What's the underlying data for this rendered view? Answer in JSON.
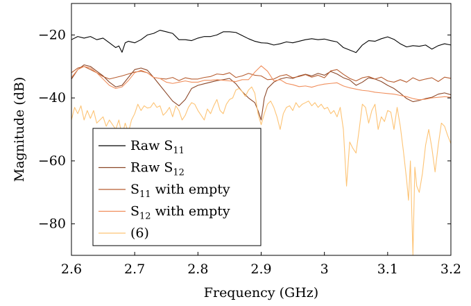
{
  "chart_data": {
    "type": "line",
    "xlabel": "Frequency (GHz)",
    "ylabel": "Magnitude (dB)",
    "xlim": [
      2.6,
      3.2
    ],
    "ylim": [
      -90,
      -10
    ],
    "xticks": [
      "2.6",
      "2.7",
      "2.8",
      "2.9",
      "3",
      "3.1",
      "3.2"
    ],
    "xtick_values": [
      2.6,
      2.7,
      2.8,
      2.9,
      3.0,
      3.1,
      3.2
    ],
    "yticks": [
      "−20",
      "−40",
      "−60",
      "−80"
    ],
    "ytick_values": [
      -20,
      -40,
      -60,
      -80
    ],
    "grid": false,
    "legend_position": "bottom-left",
    "series": [
      {
        "name": "Raw S11",
        "legend_main": "Raw S",
        "legend_sub": "11",
        "legend_suffix": "",
        "color": "#000000",
        "x": [
          2.6,
          2.61,
          2.62,
          2.63,
          2.64,
          2.65,
          2.66,
          2.67,
          2.675,
          2.68,
          2.685,
          2.69,
          2.7,
          2.71,
          2.72,
          2.73,
          2.74,
          2.75,
          2.76,
          2.77,
          2.78,
          2.79,
          2.8,
          2.81,
          2.82,
          2.83,
          2.84,
          2.85,
          2.86,
          2.87,
          2.88,
          2.89,
          2.9,
          2.91,
          2.92,
          2.93,
          2.94,
          2.95,
          2.96,
          2.97,
          2.98,
          2.99,
          3.0,
          3.01,
          3.02,
          3.03,
          3.04,
          3.05,
          3.06,
          3.07,
          3.08,
          3.09,
          3.1,
          3.11,
          3.12,
          3.13,
          3.14,
          3.15,
          3.16,
          3.17,
          3.18,
          3.19,
          3.2
        ],
        "y": [
          -21.5,
          -20.5,
          -21,
          -20.5,
          -21.5,
          -21,
          -22.5,
          -24,
          -23.5,
          -25.5,
          -22.5,
          -22,
          -22.5,
          -21.5,
          -20,
          -19.5,
          -18.5,
          -19,
          -19.5,
          -21.5,
          -21.5,
          -21.8,
          -21,
          -20.5,
          -20.5,
          -20,
          -19,
          -19,
          -19.2,
          -20.2,
          -21.2,
          -22,
          -22.5,
          -22.6,
          -23.2,
          -22.8,
          -22.2,
          -22.5,
          -22,
          -21.5,
          -21.2,
          -21.5,
          -21.3,
          -21.8,
          -22.2,
          -24,
          -24.8,
          -25.6,
          -23.2,
          -21.8,
          -22,
          -21.2,
          -20.6,
          -21.4,
          -22.8,
          -23.8,
          -23.4,
          -23.6,
          -23.2,
          -24.5,
          -23.4,
          -22.8,
          -23.2
        ]
      },
      {
        "name": "Raw S12",
        "legend_main": "Raw S",
        "legend_sub": "12",
        "legend_suffix": "",
        "color": "#8a4526",
        "x": [
          2.6,
          2.61,
          2.62,
          2.63,
          2.64,
          2.65,
          2.66,
          2.67,
          2.68,
          2.69,
          2.7,
          2.71,
          2.72,
          2.73,
          2.74,
          2.75,
          2.76,
          2.77,
          2.78,
          2.79,
          2.8,
          2.81,
          2.82,
          2.83,
          2.84,
          2.85,
          2.86,
          2.87,
          2.88,
          2.89,
          2.895,
          2.9,
          2.905,
          2.91,
          2.92,
          2.93,
          2.94,
          2.95,
          2.96,
          2.97,
          2.98,
          2.99,
          3.0,
          3.01,
          3.02,
          3.03,
          3.04,
          3.05,
          3.06,
          3.07,
          3.08,
          3.09,
          3.1,
          3.11,
          3.12,
          3.13,
          3.14,
          3.15,
          3.16,
          3.17,
          3.18,
          3.19,
          3.2
        ],
        "y": [
          -34,
          -31,
          -29.5,
          -30,
          -31.5,
          -33,
          -35,
          -36.5,
          -36,
          -33.5,
          -31,
          -30.5,
          -31.2,
          -33.5,
          -36,
          -38.5,
          -41,
          -42.5,
          -40.5,
          -37,
          -36,
          -35.5,
          -35,
          -34.5,
          -34.2,
          -33.8,
          -35.5,
          -38,
          -40,
          -41.5,
          -44,
          -47,
          -40,
          -37,
          -35,
          -34,
          -33.5,
          -33.8,
          -33,
          -32.5,
          -33,
          -32.2,
          -32.8,
          -31.6,
          -32.4,
          -33.6,
          -34.3,
          -36,
          -35,
          -33.6,
          -34,
          -34.8,
          -36,
          -37,
          -38.5,
          -40.2,
          -41.2,
          -40.8,
          -40.2,
          -39.8,
          -38.8,
          -38.4,
          -39
        ]
      },
      {
        "name": "S11 with empty",
        "legend_main": "S",
        "legend_sub": "11",
        "legend_suffix": " with empty",
        "color": "#b75d30",
        "x": [
          2.6,
          2.61,
          2.62,
          2.63,
          2.64,
          2.65,
          2.66,
          2.67,
          2.68,
          2.69,
          2.7,
          2.71,
          2.72,
          2.73,
          2.74,
          2.75,
          2.76,
          2.77,
          2.78,
          2.79,
          2.8,
          2.81,
          2.82,
          2.83,
          2.84,
          2.85,
          2.86,
          2.87,
          2.88,
          2.89,
          2.9,
          2.91,
          2.92,
          2.93,
          2.94,
          2.95,
          2.96,
          2.97,
          2.98,
          2.99,
          3.0,
          3.01,
          3.02,
          3.03,
          3.04,
          3.05,
          3.06,
          3.07,
          3.08,
          3.09,
          3.1,
          3.11,
          3.12,
          3.13,
          3.14,
          3.15,
          3.16,
          3.17,
          3.18,
          3.19,
          3.2
        ],
        "y": [
          -32,
          -30.5,
          -30,
          -31,
          -32,
          -33.2,
          -34,
          -33.5,
          -33,
          -32.4,
          -31.8,
          -31.5,
          -32,
          -33.5,
          -33.8,
          -34,
          -33.5,
          -34.5,
          -33.6,
          -34,
          -34,
          -33.5,
          -33.2,
          -32.4,
          -32.6,
          -32,
          -33.5,
          -33,
          -32.2,
          -32.8,
          -33,
          -34.2,
          -34,
          -33,
          -32.6,
          -33.6,
          -33.2,
          -32.6,
          -33.4,
          -32.8,
          -33.6,
          -31.4,
          -31,
          -32.5,
          -33.8,
          -34.6,
          -33.6,
          -33.2,
          -34,
          -33.4,
          -34.6,
          -35,
          -34.2,
          -35,
          -33.6,
          -34.5,
          -34,
          -33.6,
          -34.8,
          -33.4,
          -33.8
        ]
      },
      {
        "name": "S12 with empty",
        "legend_main": "S",
        "legend_sub": "12",
        "legend_suffix": " with empty",
        "color": "#f08d5a",
        "x": [
          2.6,
          2.61,
          2.62,
          2.63,
          2.64,
          2.65,
          2.66,
          2.67,
          2.68,
          2.69,
          2.7,
          2.71,
          2.72,
          2.73,
          2.74,
          2.75,
          2.76,
          2.77,
          2.78,
          2.79,
          2.8,
          2.81,
          2.82,
          2.83,
          2.84,
          2.85,
          2.86,
          2.87,
          2.88,
          2.89,
          2.9,
          2.91,
          2.92,
          2.93,
          2.94,
          2.95,
          2.96,
          2.97,
          2.98,
          2.99,
          3.0,
          3.01,
          3.02,
          3.03,
          3.04,
          3.05,
          3.06,
          3.07,
          3.08,
          3.09,
          3.1,
          3.11,
          3.12,
          3.13,
          3.14,
          3.15,
          3.16,
          3.17,
          3.18,
          3.19,
          3.2
        ],
        "y": [
          -33.5,
          -31,
          -30,
          -30.5,
          -32,
          -34,
          -36,
          -37,
          -36.5,
          -34.5,
          -32,
          -31.2,
          -32,
          -33.5,
          -33.8,
          -35,
          -35.4,
          -35,
          -34.6,
          -35,
          -35,
          -34.4,
          -34.4,
          -34.2,
          -34.4,
          -34.6,
          -34.8,
          -34.2,
          -34.2,
          -31.8,
          -29.8,
          -31.5,
          -34.6,
          -34.2,
          -35.4,
          -35.8,
          -36.4,
          -36.2,
          -36.6,
          -36,
          -35.6,
          -35.4,
          -35.2,
          -36.2,
          -36.8,
          -37.2,
          -37.6,
          -37.8,
          -38.2,
          -38.4,
          -38.6,
          -38.8,
          -39.2,
          -39.6,
          -40.2,
          -40.6,
          -40.4,
          -40,
          -39.8,
          -39.6,
          -39.8
        ]
      },
      {
        "name": "(6)",
        "legend_main": "(6)",
        "legend_sub": "",
        "legend_suffix": "",
        "color": "#fdc374",
        "x": [
          2.6,
          2.605,
          2.61,
          2.615,
          2.62,
          2.625,
          2.63,
          2.635,
          2.64,
          2.645,
          2.65,
          2.655,
          2.66,
          2.665,
          2.67,
          2.675,
          2.68,
          2.685,
          2.69,
          2.695,
          2.7,
          2.705,
          2.71,
          2.715,
          2.72,
          2.725,
          2.73,
          2.735,
          2.74,
          2.745,
          2.75,
          2.755,
          2.76,
          2.765,
          2.77,
          2.775,
          2.78,
          2.785,
          2.79,
          2.795,
          2.8,
          2.805,
          2.81,
          2.815,
          2.82,
          2.825,
          2.83,
          2.835,
          2.84,
          2.845,
          2.85,
          2.855,
          2.86,
          2.865,
          2.87,
          2.875,
          2.88,
          2.885,
          2.89,
          2.895,
          2.9,
          2.905,
          2.91,
          2.915,
          2.92,
          2.925,
          2.93,
          2.935,
          2.94,
          2.945,
          2.95,
          2.955,
          2.96,
          2.965,
          2.97,
          2.975,
          2.98,
          2.985,
          2.99,
          2.995,
          3.0,
          3.005,
          3.01,
          3.015,
          3.02,
          3.025,
          3.03,
          3.035,
          3.04,
          3.045,
          3.05,
          3.055,
          3.06,
          3.065,
          3.07,
          3.075,
          3.08,
          3.085,
          3.09,
          3.095,
          3.1,
          3.105,
          3.11,
          3.115,
          3.12,
          3.125,
          3.13,
          3.133,
          3.136,
          3.14,
          3.143,
          3.146,
          3.15,
          3.155,
          3.16,
          3.165,
          3.17,
          3.175,
          3.18,
          3.185,
          3.19,
          3.195,
          3.2
        ],
        "y": [
          -47,
          -43,
          -45,
          -42.5,
          -47,
          -44,
          -46.5,
          -44,
          -48,
          -47,
          -46,
          -49,
          -47,
          -48.5,
          -50,
          -47,
          -52,
          -48,
          -51,
          -47,
          -45,
          -42,
          -44,
          -42.5,
          -43.2,
          -43,
          -41.5,
          -43,
          -42.5,
          -45.5,
          -44.5,
          -43,
          -46,
          -42.5,
          -44,
          -47,
          -45.5,
          -43,
          -41.5,
          -42,
          -44,
          -45.5,
          -47,
          -43.5,
          -45,
          -42.5,
          -40.5,
          -44,
          -45,
          -42,
          -40.5,
          -40,
          -37.5,
          -37,
          -38,
          -39.5,
          -37.5,
          -36.5,
          -38.5,
          -45,
          -48.5,
          -45,
          -42,
          -41,
          -43,
          -46,
          -50,
          -45,
          -43,
          -42.5,
          -44,
          -41.5,
          -43,
          -42,
          -41.5,
          -41,
          -42.5,
          -41.5,
          -43,
          -42,
          -43.5,
          -43,
          -45,
          -44,
          -46,
          -43,
          -50,
          -68,
          -54,
          -56,
          -57.5,
          -50,
          -42,
          -43,
          -48,
          -44,
          -42,
          -50,
          -46,
          -47.5,
          -44,
          -44.5,
          -50,
          -43,
          -49,
          -57,
          -66,
          -72.5,
          -60,
          -90,
          -62,
          -68,
          -70,
          -64,
          -55,
          -50,
          -56,
          -63.5,
          -55,
          -48,
          -49,
          -52,
          -54.5
        ]
      }
    ]
  }
}
